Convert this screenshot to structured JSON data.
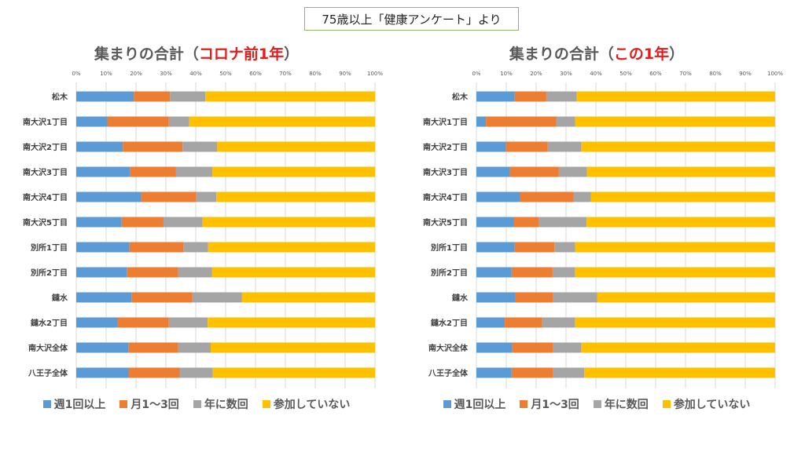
{
  "banner": {
    "text": "75歳以上「健康アンケート」より"
  },
  "colors": {
    "weekly": "#5b9bd5",
    "monthly": "#ed7d31",
    "yearly": "#a5a5a5",
    "none": "#ffc000"
  },
  "chart_data": [
    {
      "type": "bar",
      "orientation": "horizontal",
      "stacked": "percent",
      "title_prefix": "集まりの合計（",
      "title_highlight": "コロナ前1年",
      "title_suffix": "）",
      "xlim": [
        0,
        100
      ],
      "x_ticks": [
        "0%",
        "10%",
        "20%",
        "30%",
        "40%",
        "50%",
        "60%",
        "70%",
        "80%",
        "90%",
        "100%"
      ],
      "grid": true,
      "legend_position": "bottom",
      "categories": [
        "松木",
        "南大沢1丁目",
        "南大沢2丁目",
        "南大沢3丁目",
        "南大沢4丁目",
        "南大沢5丁目",
        "別所1丁目",
        "別所2丁目",
        "鑓水",
        "鑓水2丁目",
        "南大沢全体",
        "八王子全体"
      ],
      "series": [
        {
          "name": "週1回以上",
          "key": "weekly",
          "values": [
            19.3,
            10.4,
            15.6,
            18.1,
            21.7,
            15.2,
            17.8,
            16.9,
            18.5,
            13.8,
            17.4,
            17.5
          ]
        },
        {
          "name": "月1～3回",
          "key": "monthly",
          "values": [
            12.1,
            20.6,
            20.0,
            15.3,
            18.3,
            14.0,
            18.0,
            17.2,
            20.4,
            17.2,
            16.7,
            17.1
          ]
        },
        {
          "name": "年に数回",
          "key": "yearly",
          "values": [
            11.8,
            6.8,
            11.6,
            12.2,
            6.9,
            13.1,
            8.3,
            11.3,
            16.5,
            13.0,
            10.9,
            11.1
          ]
        },
        {
          "name": "参加していない",
          "key": "none",
          "values": [
            56.8,
            62.2,
            52.8,
            54.4,
            53.1,
            57.7,
            55.9,
            54.6,
            44.6,
            56.0,
            55.0,
            54.3
          ]
        }
      ]
    },
    {
      "type": "bar",
      "orientation": "horizontal",
      "stacked": "percent",
      "title_prefix": "集まりの合計（",
      "title_highlight": "この1年",
      "title_suffix": "）",
      "xlim": [
        0,
        100
      ],
      "x_ticks": [
        "0%",
        "10%",
        "20%",
        "30%",
        "40%",
        "50%",
        "60%",
        "70%",
        "80%",
        "90%",
        "100%"
      ],
      "grid": true,
      "legend_position": "bottom",
      "categories": [
        "松木",
        "南大沢1丁目",
        "南大沢2丁目",
        "南大沢3丁目",
        "南大沢4丁目",
        "南大沢5丁目",
        "別所1丁目",
        "別所2丁目",
        "鑓水",
        "鑓水2丁目",
        "南大沢全体",
        "八王子全体"
      ],
      "series": [
        {
          "name": "週1回以上",
          "key": "weekly",
          "values": [
            12.8,
            3.2,
            9.9,
            11.2,
            14.6,
            12.5,
            12.8,
            11.8,
            12.9,
            9.5,
            12.0,
            11.8
          ]
        },
        {
          "name": "月1～3回",
          "key": "monthly",
          "values": [
            10.6,
            23.5,
            14.0,
            16.4,
            18.0,
            8.4,
            13.3,
            13.7,
            12.8,
            12.5,
            13.7,
            13.9
          ]
        },
        {
          "name": "年に数回",
          "key": "yearly",
          "values": [
            10.2,
            6.4,
            11.2,
            9.4,
            5.7,
            16.0,
            7.0,
            7.5,
            14.8,
            11.0,
            9.3,
            10.4
          ]
        },
        {
          "name": "参加していない",
          "key": "none",
          "values": [
            66.4,
            66.9,
            64.9,
            63.0,
            61.7,
            63.1,
            66.9,
            67.0,
            59.5,
            67.0,
            65.0,
            63.9
          ]
        }
      ]
    }
  ]
}
